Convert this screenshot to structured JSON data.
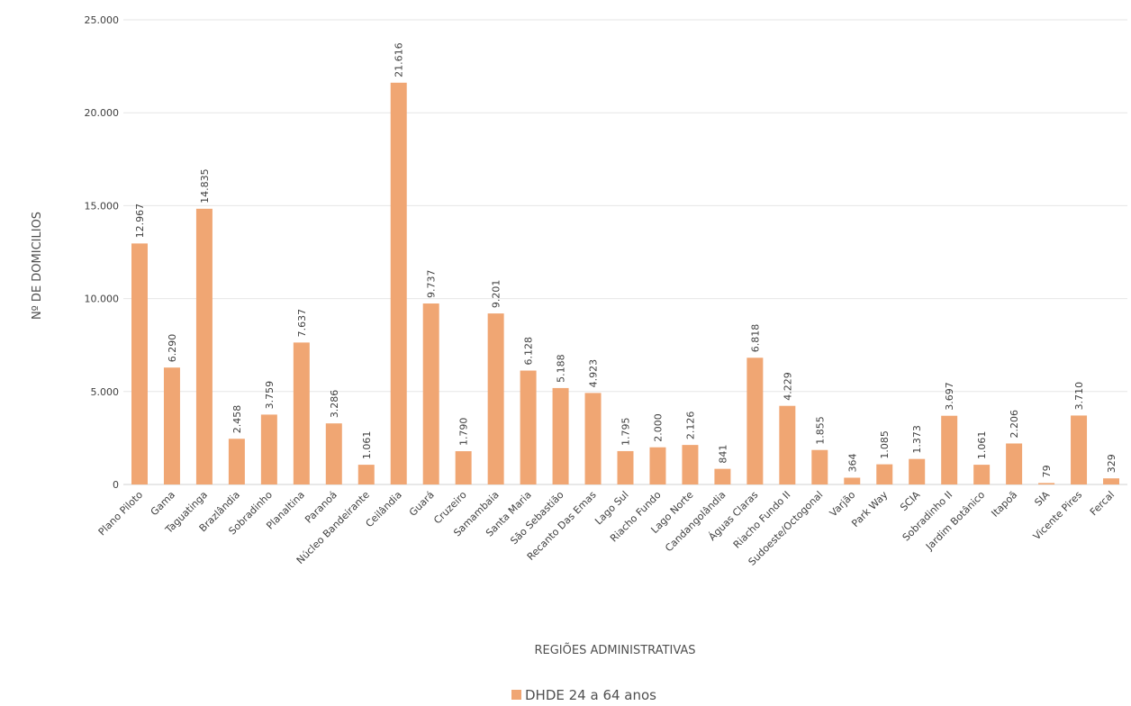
{
  "chart_data": {
    "type": "bar",
    "xlabel": "REGIÕES ADMINISTRATIVAS",
    "ylabel": "Nº DE DOMICILIOS",
    "ylim": [
      0,
      25000
    ],
    "yticks": [
      "0",
      "5.000",
      "10.000",
      "15.000",
      "20.000",
      "25.000"
    ],
    "grid": true,
    "legend_position": "bottom",
    "bar_color": "#f0a673",
    "categories": [
      "Plano Piloto",
      "Gama",
      "Taguatinga",
      "Brazlândia",
      "Sobradinho",
      "Planaltina",
      "Paranoá",
      "Núcleo Bandeirante",
      "Ceilândia",
      "Guará",
      "Cruzeiro",
      "Samambaia",
      "Santa Maria",
      "São Sebastião",
      "Recanto Das Emas",
      "Lago Sul",
      "Riacho Fundo",
      "Lago Norte",
      "Candangolândia",
      "Águas Claras",
      "Riacho Fundo II",
      "Sudoeste/Octogonal",
      "Varjão",
      "Park Way",
      "SCIA",
      "Sobradinho II",
      "Jardim Botânico",
      "Itapoã",
      "SIA",
      "Vicente Pires",
      "Fercal"
    ],
    "series": [
      {
        "name": "DHDE 24 a 64 anos",
        "values": [
          12967,
          6290,
          14835,
          2458,
          3759,
          7637,
          3286,
          1061,
          21616,
          9737,
          1790,
          9201,
          6128,
          5188,
          4923,
          1795,
          2000,
          2126,
          841,
          6818,
          4229,
          1855,
          364,
          1085,
          1373,
          3697,
          1061,
          2206,
          79,
          3710,
          329
        ],
        "labels": [
          "12.967",
          "6.290",
          "14.835",
          "2.458",
          "3.759",
          "7.637",
          "3.286",
          "1.061",
          "21.616",
          "9.737",
          "1.790",
          "9.201",
          "6.128",
          "5.188",
          "4.923",
          "1.795",
          "2.000",
          "2.126",
          "841",
          "6.818",
          "4.229",
          "1.855",
          "364",
          "1.085",
          "1.373",
          "3.697",
          "1.061",
          "2.206",
          "79",
          "3.710",
          "329"
        ]
      }
    ]
  }
}
